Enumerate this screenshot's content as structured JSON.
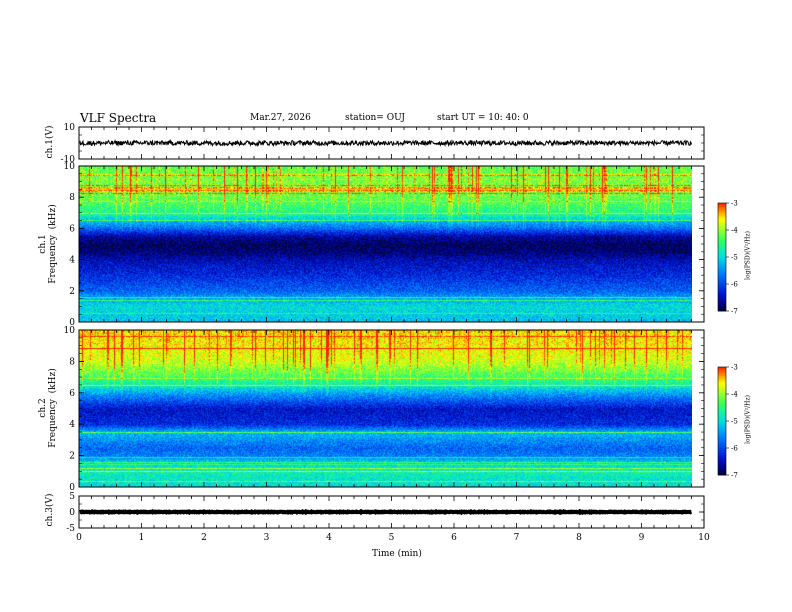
{
  "header": {
    "title": "VLF Spectra",
    "date": "Mar.27, 2026",
    "station": "station= OUJ",
    "start_ut": "start  UT =   10: 40: 0"
  },
  "colors": {
    "background_low": "#000040",
    "low": "#0010d0",
    "mid_low": "#0080ff",
    "mid": "#00e0e0",
    "mid_high": "#30ff60",
    "high": "#ffff00",
    "peak": "#ff2000",
    "trace": "#000000"
  },
  "chart_data": [
    {
      "type": "line",
      "name": "ch1-waveform",
      "ylabel": "ch.1(V)",
      "ylim": [
        -10,
        10
      ],
      "yticks": [
        "10",
        "-10"
      ],
      "xlim": [
        0,
        10
      ],
      "trace_level_v": 0,
      "trace_amplitude_v": 1.5,
      "trace_end_min": 9.8
    },
    {
      "type": "heatmap",
      "name": "ch1-spectrogram",
      "ylabel": "ch.1\nFrequency  (kHz)",
      "ylim": [
        0,
        10
      ],
      "yticks": [
        "0",
        "2",
        "4",
        "6",
        "8",
        "10"
      ],
      "xlim": [
        0,
        10
      ],
      "data_end_min": 9.8,
      "colorbar": {
        "label": "log(PSD)(V²/Hz)",
        "range": [
          -7,
          -3
        ],
        "ticks": [
          "-3",
          "-4",
          "-5",
          "-6",
          "-7"
        ]
      },
      "band_profile_khz": [
        [
          0,
          -5.2
        ],
        [
          1,
          -5.0
        ],
        [
          1.5,
          -5.3
        ],
        [
          2,
          -5.8
        ],
        [
          3,
          -6.2
        ],
        [
          4,
          -6.5
        ],
        [
          4.5,
          -6.8
        ],
        [
          5,
          -6.9
        ],
        [
          5.5,
          -6.6
        ],
        [
          6,
          -5.8
        ],
        [
          6.5,
          -5.2
        ],
        [
          7,
          -4.6
        ],
        [
          7.5,
          -4.4
        ],
        [
          8,
          -4.2
        ],
        [
          9,
          -4.1
        ],
        [
          10,
          -4.2
        ]
      ]
    },
    {
      "type": "heatmap",
      "name": "ch2-spectrogram",
      "ylabel": "ch.2\nFrequency  (kHz)",
      "ylim": [
        0,
        10
      ],
      "yticks": [
        "0",
        "2",
        "4",
        "6",
        "8",
        "10"
      ],
      "xlim": [
        0,
        10
      ],
      "data_end_min": 9.8,
      "colorbar": {
        "label": "log(PSD)(V²/Hz)",
        "range": [
          -7,
          -3
        ],
        "ticks": [
          "-3",
          "-4",
          "-5",
          "-6",
          "-7"
        ]
      },
      "band_profile_khz": [
        [
          0,
          -5.0
        ],
        [
          1,
          -4.8
        ],
        [
          1.5,
          -5.0
        ],
        [
          2,
          -5.6
        ],
        [
          2.5,
          -5.8
        ],
        [
          3,
          -5.5
        ],
        [
          3.5,
          -5.2
        ],
        [
          4,
          -6.2
        ],
        [
          5,
          -6.4
        ],
        [
          6,
          -5.4
        ],
        [
          6.5,
          -4.8
        ],
        [
          7,
          -4.4
        ],
        [
          8,
          -3.8
        ],
        [
          9,
          -3.6
        ],
        [
          10,
          -3.5
        ]
      ]
    },
    {
      "type": "line",
      "name": "ch3-waveform",
      "ylabel": "ch.3(V)",
      "ylim": [
        -5,
        5
      ],
      "yticks": [
        "5",
        "0",
        "-5"
      ],
      "xlim": [
        0,
        10
      ],
      "trace_level_v": 0,
      "trace_amplitude_v": 0.1,
      "trace_end_min": 9.8
    }
  ],
  "xaxis": {
    "label": "Time  (min)",
    "ticks": [
      "0",
      "1",
      "2",
      "3",
      "4",
      "5",
      "6",
      "7",
      "8",
      "9",
      "10"
    ]
  }
}
